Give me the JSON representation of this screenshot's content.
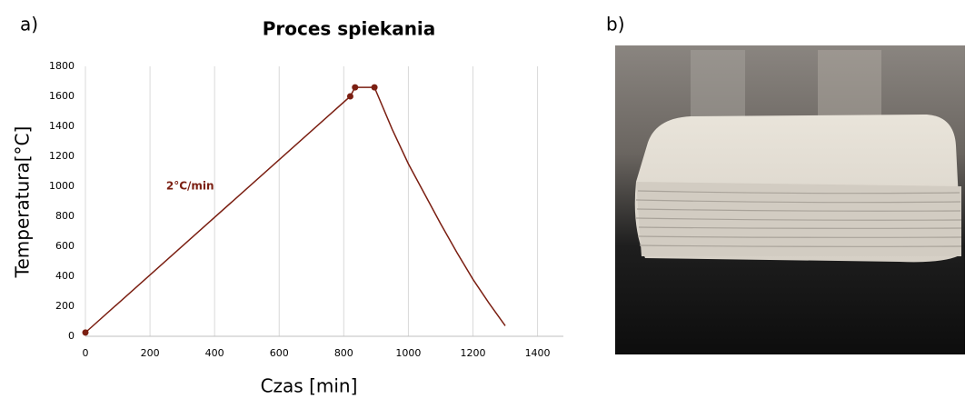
{
  "panel_labels": [
    "a)",
    "b)"
  ],
  "chart_data": {
    "type": "line",
    "title": "Proces spiekania",
    "x_label": "Czas [min]",
    "y_label": "Temperatura[°C]",
    "annotation": "2°C/min",
    "annotation_x": 250,
    "annotation_y": 1000,
    "color": "#7b1f12",
    "x": [
      0,
      820,
      835,
      895,
      950,
      1000,
      1050,
      1100,
      1150,
      1200,
      1250,
      1300
    ],
    "values": [
      25,
      1600,
      1660,
      1660,
      1380,
      1150,
      950,
      750,
      560,
      380,
      220,
      70
    ],
    "marker_x": [
      0,
      820,
      835,
      895
    ],
    "marker_values": [
      25,
      1600,
      1660,
      1660
    ],
    "xlim": [
      0,
      1480
    ],
    "xticks": [
      0,
      200,
      400,
      600,
      800,
      1000,
      1200,
      1400
    ],
    "ylim": [
      0,
      1800
    ],
    "yticks": [
      0,
      200,
      400,
      600,
      800,
      1000,
      1200,
      1400,
      1600,
      1800
    ],
    "grid": "x"
  }
}
